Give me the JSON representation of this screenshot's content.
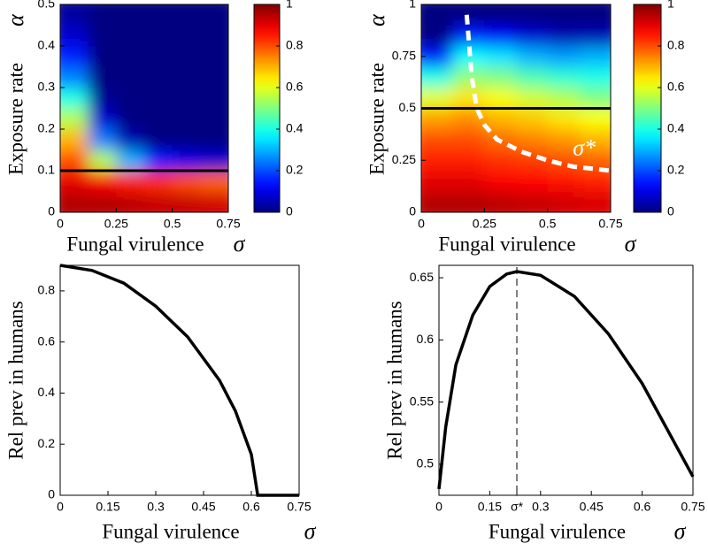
{
  "chart_data": [
    {
      "type": "heatmap",
      "x": [
        0.0625,
        0.1875,
        0.3125,
        0.4375,
        0.5625,
        0.6875
      ],
      "y": [
        0.025,
        0.075,
        0.125,
        0.175,
        0.225,
        0.275,
        0.325,
        0.375,
        0.425,
        0.475
      ],
      "z": [
        [
          0.95,
          0.95,
          0.94,
          0.93,
          0.93,
          0.92
        ],
        [
          0.9,
          0.88,
          0.85,
          0.83,
          0.8,
          0.78
        ],
        [
          0.8,
          0.55,
          0.3,
          0.15,
          0.1,
          0.08
        ],
        [
          0.7,
          0.25,
          0.05,
          0,
          0,
          0
        ],
        [
          0.55,
          0.08,
          0,
          0,
          0,
          0
        ],
        [
          0.4,
          0.02,
          0,
          0,
          0,
          0
        ],
        [
          0.25,
          0,
          0,
          0,
          0,
          0
        ],
        [
          0.15,
          0,
          0,
          0,
          0,
          0
        ],
        [
          0.08,
          0,
          0,
          0,
          0,
          0
        ],
        [
          0.03,
          0,
          0,
          0,
          0,
          0
        ]
      ],
      "xlim": [
        0,
        0.75
      ],
      "xticks": [
        0,
        0.25,
        0.5,
        0.75
      ],
      "ylim": [
        0,
        0.5
      ],
      "yticks": [
        0,
        0.1,
        0.2,
        0.3,
        0.4,
        0.5
      ],
      "xlabel": "Fungal virulence",
      "xsymbol": "σ",
      "ylabel": "Exposure rate",
      "ysymbol": "α",
      "hline": 0.1,
      "colorbar": {
        "lim": [
          0,
          1
        ],
        "ticks": [
          0,
          0.2,
          0.4,
          0.6,
          0.8,
          1
        ]
      }
    },
    {
      "type": "heatmap",
      "x": [
        0.0625,
        0.1875,
        0.3125,
        0.4375,
        0.5625,
        0.6875
      ],
      "y": [
        0.05,
        0.15,
        0.25,
        0.35,
        0.45,
        0.55,
        0.65,
        0.75,
        0.85,
        0.95
      ],
      "z": [
        [
          0.95,
          0.95,
          0.94,
          0.93,
          0.92,
          0.91
        ],
        [
          0.9,
          0.9,
          0.88,
          0.87,
          0.86,
          0.85
        ],
        [
          0.85,
          0.85,
          0.83,
          0.82,
          0.8,
          0.78
        ],
        [
          0.8,
          0.8,
          0.77,
          0.75,
          0.73,
          0.7
        ],
        [
          0.72,
          0.74,
          0.7,
          0.68,
          0.65,
          0.62
        ],
        [
          0.6,
          0.65,
          0.62,
          0.58,
          0.55,
          0.5
        ],
        [
          0.4,
          0.52,
          0.5,
          0.45,
          0.42,
          0.4
        ],
        [
          0.15,
          0.38,
          0.35,
          0.3,
          0.28,
          0.3
        ],
        [
          0,
          0.15,
          0.12,
          0.08,
          0.05,
          0.05
        ],
        [
          0,
          0,
          0,
          0,
          0,
          0
        ]
      ],
      "xlim": [
        0,
        0.75
      ],
      "xticks": [
        0,
        0.25,
        0.5,
        0.75
      ],
      "ylim": [
        0,
        1
      ],
      "yticks": [
        0,
        0.25,
        0.5,
        0.75,
        1
      ],
      "xlabel": "Fungal virulence",
      "xsymbol": "σ",
      "ylabel": "Exposure rate",
      "ysymbol": "α",
      "hline": 0.5,
      "curve": {
        "x": [
          0.18,
          0.19,
          0.2,
          0.22,
          0.25,
          0.3,
          0.4,
          0.5,
          0.6,
          0.75
        ],
        "y": [
          0.95,
          0.8,
          0.65,
          0.5,
          0.42,
          0.35,
          0.29,
          0.25,
          0.22,
          0.2
        ]
      },
      "curve_label": "σ*",
      "colorbar": {
        "lim": [
          0,
          1
        ],
        "ticks": [
          0,
          0.2,
          0.4,
          0.6,
          0.8,
          1
        ]
      }
    },
    {
      "type": "line",
      "x": [
        0,
        0.1,
        0.2,
        0.3,
        0.4,
        0.5,
        0.55,
        0.6,
        0.62,
        0.65,
        0.75
      ],
      "y": [
        0.9,
        0.88,
        0.83,
        0.74,
        0.62,
        0.45,
        0.33,
        0.16,
        0,
        0,
        0
      ],
      "xlim": [
        0,
        0.75
      ],
      "xticks": [
        0,
        0.15,
        0.3,
        0.45,
        0.6,
        0.75
      ],
      "ylim": [
        0,
        0.9
      ],
      "yticks": [
        0,
        0.2,
        0.4,
        0.6,
        0.8
      ],
      "xlabel": "Fungal virulence",
      "xsymbol": "σ",
      "ylabel": "Rel prev in humans"
    },
    {
      "type": "line",
      "x": [
        0,
        0.02,
        0.05,
        0.1,
        0.15,
        0.2,
        0.23,
        0.3,
        0.4,
        0.5,
        0.6,
        0.7,
        0.75
      ],
      "y": [
        0.48,
        0.53,
        0.58,
        0.62,
        0.643,
        0.653,
        0.655,
        0.652,
        0.635,
        0.605,
        0.565,
        0.515,
        0.49
      ],
      "xlim": [
        0,
        0.75
      ],
      "xticks": [
        0,
        0.15,
        {
          "value": 0.23,
          "label": "σ*"
        },
        0.3,
        0.45,
        0.6,
        0.75
      ],
      "ylim": [
        0.475,
        0.66
      ],
      "yticks": [
        0.5,
        0.55,
        0.6,
        0.65
      ],
      "xlabel": "Fungal virulence",
      "xsymbol": "σ",
      "ylabel": "Rel prev in humans",
      "vline_tick": 2
    }
  ]
}
